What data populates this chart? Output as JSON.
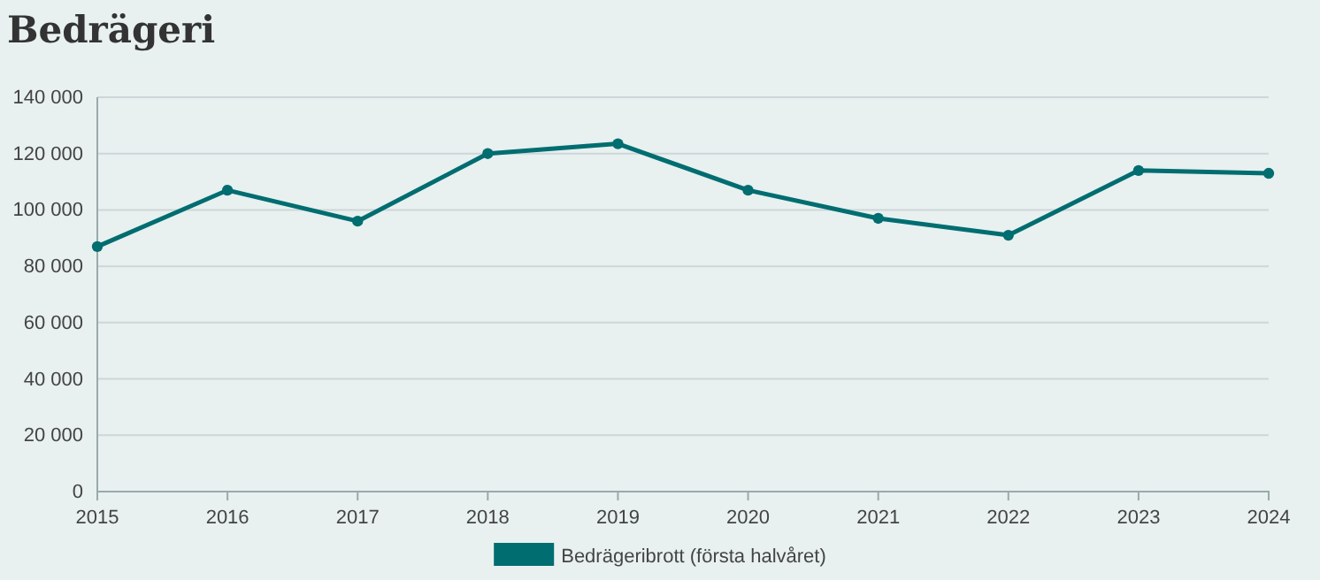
{
  "chart_data": {
    "type": "line",
    "title": "Bedrägeri",
    "categories": [
      "2015",
      "2016",
      "2017",
      "2018",
      "2019",
      "2020",
      "2021",
      "2022",
      "2023",
      "2024"
    ],
    "series": [
      {
        "name": "Bedrägeribrott (första halvåret)",
        "color": "#006d70",
        "values": [
          87000,
          107000,
          96000,
          120000,
          123500,
          107000,
          97000,
          91000,
          114000,
          113000
        ]
      }
    ],
    "ylim": [
      0,
      140000
    ],
    "yticks": [
      0,
      {
        "value": 20000,
        "label": "20 000"
      },
      {
        "value": 40000,
        "label": "40 000"
      },
      {
        "value": 60000,
        "label": "60 000"
      },
      {
        "value": 80000,
        "label": "80 000"
      },
      {
        "value": 100000,
        "label": "100 000"
      },
      {
        "value": 120000,
        "label": "120 000"
      },
      {
        "value": 140000,
        "label": "140 000"
      }
    ],
    "grid": "y",
    "legend": "bottom",
    "marker": "circle",
    "line_style": "solid"
  }
}
